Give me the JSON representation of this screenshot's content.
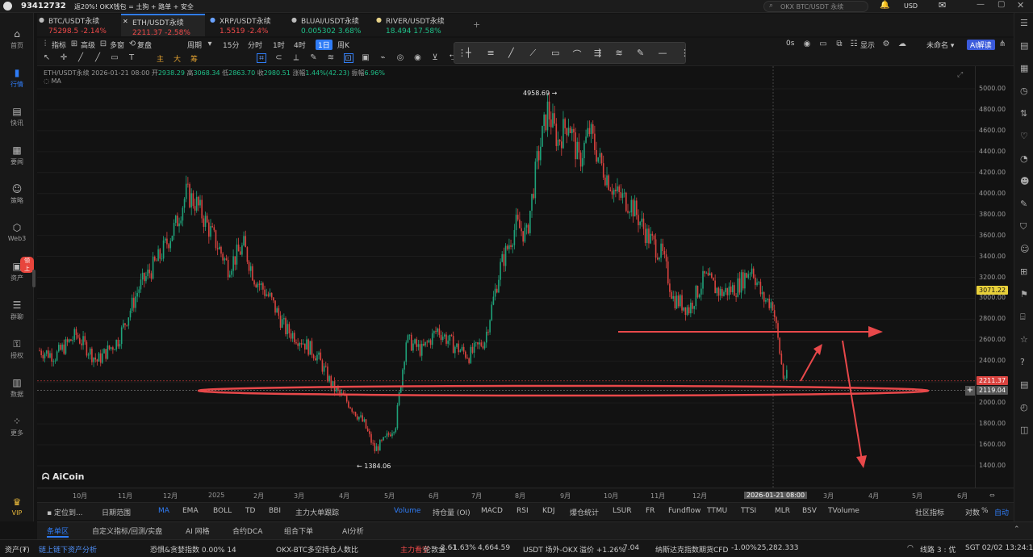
{
  "topbar": {
    "account": "93412732",
    "promo": "返20%! OKX钱包 = 土狗 + 路单 + 安全",
    "search_placeholder": "OKX BTC/USDT 永续",
    "currency": "USD",
    "window_controls": [
      "minimize",
      "maximize",
      "close"
    ]
  },
  "nav": [
    {
      "label": "首页",
      "icon": "home-icon",
      "active": false
    },
    {
      "label": "行情",
      "icon": "chart-icon",
      "active": true
    },
    {
      "label": "快讯",
      "icon": "news-icon",
      "active": false
    },
    {
      "label": "要闻",
      "icon": "document-icon",
      "active": false
    },
    {
      "label": "策略",
      "icon": "robot-icon",
      "active": false
    },
    {
      "label": "Web3",
      "icon": "web3-icon",
      "active": false
    },
    {
      "label": "资产",
      "icon": "wallet-icon",
      "active": false,
      "badge": "领上"
    },
    {
      "label": "群聊",
      "icon": "chat-icon",
      "active": false
    },
    {
      "label": "授权",
      "icon": "key-icon",
      "active": false
    },
    {
      "label": "数据",
      "icon": "data-icon",
      "active": false
    },
    {
      "label": "更多",
      "icon": "more-icon",
      "active": false
    },
    {
      "label": "VIP",
      "icon": "vip-icon",
      "active": false
    }
  ],
  "tabs": [
    {
      "name": "BTC/USDT永续",
      "price": "75298.5",
      "change": "-2.14%",
      "dir": "dn",
      "active": false
    },
    {
      "name": "ETH/USDT永续",
      "price": "2211.37",
      "change": "-2.58%",
      "dir": "dn",
      "active": true
    },
    {
      "name": "XRP/USDT永续",
      "price": "1.5519",
      "change": "-2.4%",
      "dir": "dn",
      "active": false
    },
    {
      "name": "BLUAI/USDT永续",
      "price": "0.005302",
      "change": "3.68%",
      "dir": "up",
      "active": false
    },
    {
      "name": "RIVER/USDT永续",
      "price": "18.494",
      "change": "17.58%",
      "dir": "up",
      "active": false
    }
  ],
  "toolbar1": {
    "items": [
      "指标",
      "高级",
      "多窗",
      "复盘",
      "周期",
      "15分",
      "分时",
      "1时",
      "4时",
      "1日",
      "周K"
    ],
    "selected": "1日",
    "right": {
      "zero_label": "0s",
      "display_label": "显示",
      "layout_name": "未命名",
      "ai_button": "AI解读"
    }
  },
  "toolbar2": {
    "chars": [
      "主",
      "大",
      "筹"
    ]
  },
  "chart_info": {
    "symbol": "ETH/USDT永续",
    "date": "2026-01-21 08:00",
    "open_label": "开",
    "open": "2938.29",
    "high_label": "高",
    "high": "3068.34",
    "low_label": "低",
    "low": "2863.70",
    "close_label": "收",
    "close": "2980.51",
    "chg_label": "涨幅",
    "chg": "1.44%(42.23)",
    "amp_label": "振幅",
    "amp": "6.96%",
    "ma_label": "MA",
    "watermark": "AiCoin"
  },
  "chart_data": {
    "type": "candlestick",
    "ylim": [
      1300,
      5100
    ],
    "yticks": [
      5000,
      4800,
      4600,
      4400,
      4200,
      4000,
      3800,
      3600,
      3400,
      3200,
      3000,
      2800,
      2600,
      2400,
      2200,
      2000,
      1800,
      1600,
      1400
    ],
    "xticks": [
      "10月",
      "11月",
      "12月",
      "2025",
      "2月",
      "3月",
      "4月",
      "5月",
      "6月",
      "7月",
      "8月",
      "9月",
      "10月",
      "11月",
      "12月",
      "2026-01-21 08:00",
      "3月",
      "4月",
      "5月",
      "6月"
    ],
    "annotations": {
      "high": "4958.69",
      "low": "1384.06"
    },
    "current_price": "2211.37",
    "crosshair_price": "2119.04",
    "marker_price": "3071.22",
    "path": [
      [
        0,
        2500
      ],
      [
        3,
        2450
      ],
      [
        7,
        2650
      ],
      [
        11,
        2400
      ],
      [
        15,
        2600
      ],
      [
        19,
        3100
      ],
      [
        23,
        3400
      ],
      [
        26,
        3700
      ],
      [
        28,
        4000
      ],
      [
        30,
        3900
      ],
      [
        33,
        3600
      ],
      [
        36,
        3300
      ],
      [
        39,
        3500
      ],
      [
        41,
        3200
      ],
      [
        44,
        3000
      ],
      [
        47,
        2700
      ],
      [
        50,
        2600
      ],
      [
        53,
        2450
      ],
      [
        56,
        2150
      ],
      [
        59,
        2000
      ],
      [
        62,
        1800
      ],
      [
        64,
        1550
      ],
      [
        66,
        1650
      ],
      [
        68,
        1800
      ],
      [
        70,
        2600
      ],
      [
        73,
        2500
      ],
      [
        76,
        2700
      ],
      [
        79,
        2550
      ],
      [
        82,
        2450
      ],
      [
        85,
        2600
      ],
      [
        88,
        3300
      ],
      [
        91,
        3700
      ],
      [
        93,
        3600
      ],
      [
        95,
        4300
      ],
      [
        97,
        4800
      ],
      [
        99,
        4500
      ],
      [
        101,
        4700
      ],
      [
        103,
        4300
      ],
      [
        105,
        4600
      ],
      [
        107,
        4300
      ],
      [
        110,
        4000
      ],
      [
        113,
        3900
      ],
      [
        116,
        3600
      ],
      [
        119,
        3400
      ],
      [
        121,
        3000
      ],
      [
        124,
        2900
      ],
      [
        127,
        3200
      ],
      [
        130,
        3050
      ],
      [
        133,
        3100
      ],
      [
        136,
        3300
      ],
      [
        138,
        3000
      ],
      [
        140,
        2950
      ],
      [
        142,
        2250
      ]
    ],
    "ohlc_sample": {
      "count": 143
    }
  },
  "indicators": {
    "left": [
      "定位到...",
      "日期范围"
    ],
    "main": [
      "MA",
      "EMA",
      "BOLL",
      "TD",
      "BBI",
      "主力大单跟踪"
    ],
    "main_active": "MA",
    "sub": [
      "Volume",
      "持仓量 (OI)",
      "MACD",
      "RSI",
      "KDJ",
      "爆仓统计",
      "LSUR",
      "FR",
      "Fundflow",
      "TTMU",
      "TTSI",
      "MLR",
      "BSV",
      "TVolume"
    ],
    "sub_active": "Volume",
    "right": [
      "社区指标",
      "对数",
      "%",
      "自动"
    ]
  },
  "bottom_tabs": [
    "条单区",
    "自定义指标/回测/实盘",
    "AI 网格",
    "合约DCA",
    "组合下单",
    "AI分析"
  ],
  "ticker": {
    "items": [
      {
        "label": "资产(₮)",
        "value": "",
        "dir": ""
      },
      {
        "label": "链上链下资产分析",
        "value": "",
        "dir": "link"
      },
      {
        "label": "恐惧&贪婪指数",
        "value": "0.00%  14",
        "dir": ""
      },
      {
        "label": "OKX-BTC多空持仓人数比",
        "value": "2.61",
        "dir": "",
        "tag": "主力看空"
      },
      {
        "label": "伦敦金",
        "value": "4,664.59",
        "dir": "dn",
        "pct": "-1.63%"
      },
      {
        "label": "USDT 场外-OKX",
        "value": "7.04",
        "dir": "up",
        "pct": "溢价 +1.26%"
      },
      {
        "label": "纳斯达克指数期货CFD",
        "value": "25,282.333",
        "dir": "dn",
        "pct": "-1.00%"
      }
    ],
    "line": "线路 3 : 优",
    "time": "SGT 02/02 13:24:19"
  }
}
